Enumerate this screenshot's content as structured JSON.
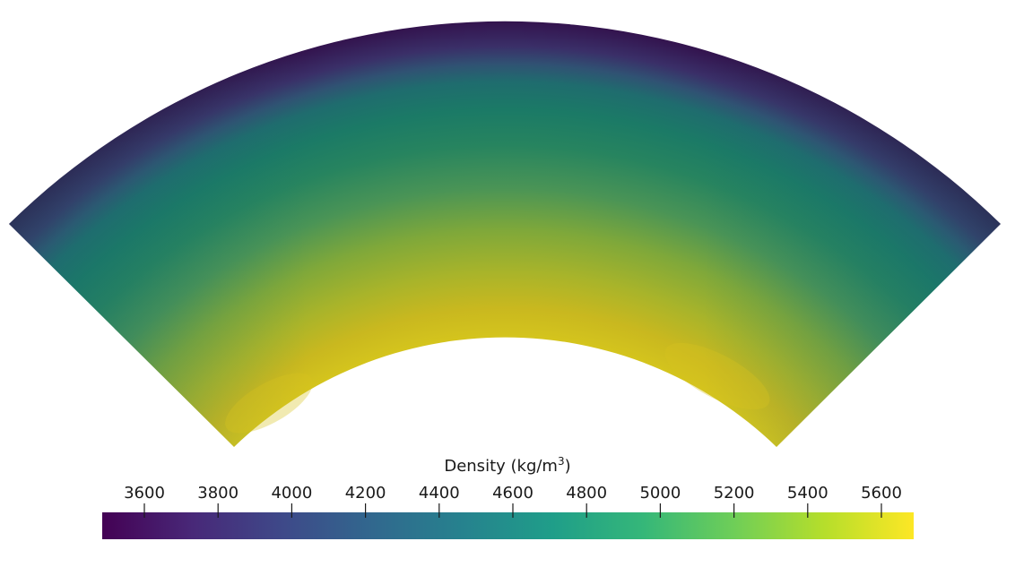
{
  "colorbar": {
    "title": "Density (kg/m",
    "title_superscript": "3",
    "title_suffix": ")",
    "ticks": [
      "3600",
      "3800",
      "4000",
      "4200",
      "4400",
      "4600",
      "4800",
      "5000",
      "5200",
      "5400",
      "5600"
    ],
    "colormap": "viridis",
    "colors": [
      "#440154",
      "#482878",
      "#3e4989",
      "#31688e",
      "#26828e",
      "#1f9e89",
      "#35b779",
      "#6ece58",
      "#b5de2b",
      "#fde725"
    ]
  }
}
